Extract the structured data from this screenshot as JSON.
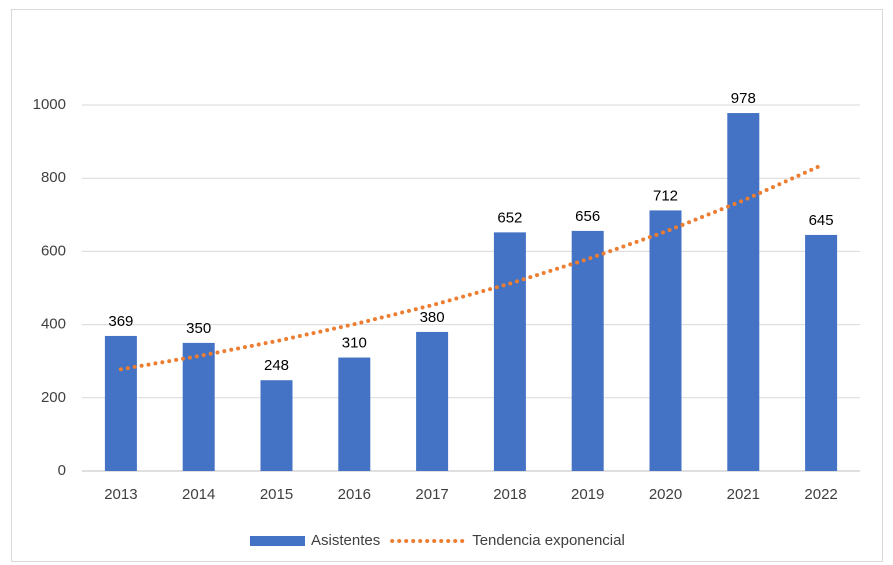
{
  "chart_data": {
    "type": "bar",
    "categories": [
      "2013",
      "2014",
      "2015",
      "2016",
      "2017",
      "2018",
      "2019",
      "2020",
      "2021",
      "2022"
    ],
    "series": [
      {
        "name": "Asistentes",
        "color": "#4472c4",
        "values": [
          369,
          350,
          248,
          310,
          380,
          652,
          656,
          712,
          978,
          645
        ]
      },
      {
        "name": "Tendencia exponencial",
        "color": "#ed7d31",
        "type": "line",
        "style": "dotted",
        "values": [
          278,
          314,
          355,
          401,
          453,
          512,
          579,
          654,
          739,
          835
        ]
      }
    ],
    "ylim": [
      0,
      1000
    ],
    "yticks": [
      0,
      200,
      400,
      600,
      800,
      1000
    ],
    "grid": true,
    "legend": "bottom"
  }
}
